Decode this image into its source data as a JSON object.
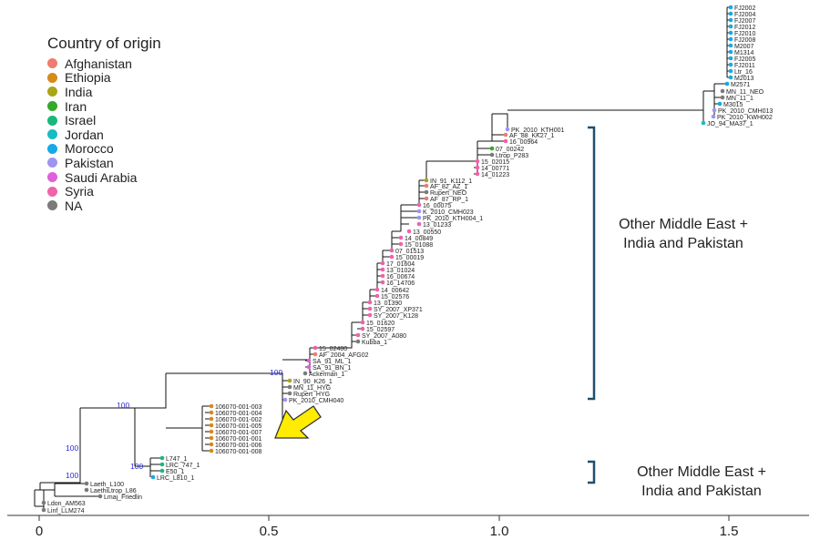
{
  "legend": {
    "title": "Country of origin",
    "items": [
      {
        "label": "Afghanistan",
        "color": "#f07b72"
      },
      {
        "label": "Ethiopia",
        "color": "#d68a1a"
      },
      {
        "label": "India",
        "color": "#a8a519"
      },
      {
        "label": "Iran",
        "color": "#35a82a"
      },
      {
        "label": "Israel",
        "color": "#18b87d"
      },
      {
        "label": "Jordan",
        "color": "#19bcc2"
      },
      {
        "label": "Morocco",
        "color": "#17a8e6"
      },
      {
        "label": "Pakistan",
        "color": "#9d95f0"
      },
      {
        "label": "Saudi Arabia",
        "color": "#df5fdc"
      },
      {
        "label": "Syria",
        "color": "#f062a9"
      },
      {
        "label": "NA",
        "color": "#7a7a7a"
      }
    ]
  },
  "clades": [
    {
      "line1": "Other Middle East +",
      "line2": "India and Pakistan"
    },
    {
      "line1": "Other Middle East +",
      "line2": "India and Pakistan"
    }
  ],
  "axis": {
    "ticks": [
      "0",
      "0.5",
      "1.0",
      "1.5"
    ]
  },
  "bootstrap": [
    "100",
    "100",
    "100",
    "100",
    "100"
  ],
  "tips": [
    {
      "label": "FJ2002",
      "country": "Morocco"
    },
    {
      "label": "FJ2004",
      "country": "Morocco"
    },
    {
      "label": "FJ2007",
      "country": "Morocco"
    },
    {
      "label": "FJ2012",
      "country": "Morocco"
    },
    {
      "label": "FJ2010",
      "country": "Morocco"
    },
    {
      "label": "FJ2008",
      "country": "Morocco"
    },
    {
      "label": "M2007",
      "country": "Morocco"
    },
    {
      "label": "M1314",
      "country": "Morocco"
    },
    {
      "label": "FJ2005",
      "country": "Morocco"
    },
    {
      "label": "FJ2011",
      "country": "Morocco"
    },
    {
      "label": "Ltr_16",
      "country": "Morocco"
    },
    {
      "label": "M2013",
      "country": "Morocco"
    },
    {
      "label": "M2571",
      "country": "Morocco"
    },
    {
      "label": "MN_11_NEO",
      "country": "NA"
    },
    {
      "label": "MN_11_1",
      "country": "NA"
    },
    {
      "label": "M3015",
      "country": "Morocco"
    },
    {
      "label": "PK_2010_CMH013",
      "country": "Pakistan"
    },
    {
      "label": "PK_2010_KWH002",
      "country": "Pakistan"
    },
    {
      "label": "JO_94_MA37_1",
      "country": "Jordan"
    },
    {
      "label": "PK_2010_KTH001",
      "country": "Pakistan"
    },
    {
      "label": "AF_88_KK27_1",
      "country": "Afghanistan"
    },
    {
      "label": "16_00964",
      "country": "Syria"
    },
    {
      "label": "07_00242",
      "country": "Iran"
    },
    {
      "label": "Ltrop_P283",
      "country": "NA"
    },
    {
      "label": "15_02015",
      "country": "Syria"
    },
    {
      "label": "14_00771",
      "country": "Syria"
    },
    {
      "label": "14_01223",
      "country": "Syria"
    },
    {
      "label": "IN_91_K112_1",
      "country": "India"
    },
    {
      "label": "AF_82_AZ_1",
      "country": "Afghanistan"
    },
    {
      "label": "Rupert_NEO",
      "country": "NA"
    },
    {
      "label": "AF_87_RP_1",
      "country": "Afghanistan"
    },
    {
      "label": "16_00075",
      "country": "Syria"
    },
    {
      "label": "K_2010_CMH023",
      "country": "Pakistan"
    },
    {
      "label": "PK_2010_KTH004_1",
      "country": "Pakistan"
    },
    {
      "label": "13_01233",
      "country": "Syria"
    },
    {
      "label": "13_00550",
      "country": "Syria"
    },
    {
      "label": "14_00849",
      "country": "Syria"
    },
    {
      "label": "15_01088",
      "country": "Syria"
    },
    {
      "label": "07_01513",
      "country": "Syria"
    },
    {
      "label": "15_00019",
      "country": "Syria"
    },
    {
      "label": "17_01604",
      "country": "Syria"
    },
    {
      "label": "13_01024",
      "country": "Syria"
    },
    {
      "label": "16_00674",
      "country": "Syria"
    },
    {
      "label": "16_14706",
      "country": "Syria"
    },
    {
      "label": "14_00642",
      "country": "Syria"
    },
    {
      "label": "15_02576",
      "country": "Syria"
    },
    {
      "label": "13_01390",
      "country": "Syria"
    },
    {
      "label": "SY_2007_XP371",
      "country": "Syria"
    },
    {
      "label": "SY_2007_K128",
      "country": "Syria"
    },
    {
      "label": "15_01620",
      "country": "Syria"
    },
    {
      "label": "15_02597",
      "country": "Syria"
    },
    {
      "label": "SY_2007_A080",
      "country": "Syria"
    },
    {
      "label": "Kubba_1",
      "country": "NA"
    },
    {
      "label": "15_02480",
      "country": "Syria"
    },
    {
      "label": "AF_2004_AFG02",
      "country": "Afghanistan"
    },
    {
      "label": "SA_91_ML_1",
      "country": "Saudi Arabia"
    },
    {
      "label": "SA_91_BN_1",
      "country": "Saudi Arabia"
    },
    {
      "label": "Ackerman_1",
      "country": "NA"
    },
    {
      "label": "IN_90_K26_1",
      "country": "India"
    },
    {
      "label": "MN_11_HYG",
      "country": "NA"
    },
    {
      "label": "Rupert_HYG",
      "country": "NA"
    },
    {
      "label": "PK_2010_CMH040",
      "country": "Pakistan"
    },
    {
      "label": "106070-001-003",
      "country": "Ethiopia"
    },
    {
      "label": "106070-001-004",
      "country": "Ethiopia"
    },
    {
      "label": "106070-001-002",
      "country": "Ethiopia"
    },
    {
      "label": "106070-001-005",
      "country": "Ethiopia"
    },
    {
      "label": "106070-001-007",
      "country": "Ethiopia"
    },
    {
      "label": "106070-001-001",
      "country": "Ethiopia"
    },
    {
      "label": "106070-001-006",
      "country": "Ethiopia"
    },
    {
      "label": "106070-001-008",
      "country": "Ethiopia"
    },
    {
      "label": "L747_1",
      "country": "Israel"
    },
    {
      "label": "LRC_747_1",
      "country": "Israel"
    },
    {
      "label": "E50_1",
      "country": "Israel"
    },
    {
      "label": "LRC_L810_1",
      "country": "Morocco"
    },
    {
      "label": "Laeth_L100",
      "country": "NA"
    },
    {
      "label": "LaethiLtrop_L86",
      "country": "NA"
    },
    {
      "label": "Lmaj_Friedlin",
      "country": "NA"
    },
    {
      "label": "Ldon_AM563",
      "country": "NA"
    },
    {
      "label": "Linf_LLM274",
      "country": "NA"
    }
  ],
  "colors": {
    "branch": "#111111",
    "bracket": "#1f4f6e",
    "arrow_fill": "#ffec00",
    "arrow_stroke": "#333333",
    "bootstrap_text": "#2a2ad8"
  }
}
